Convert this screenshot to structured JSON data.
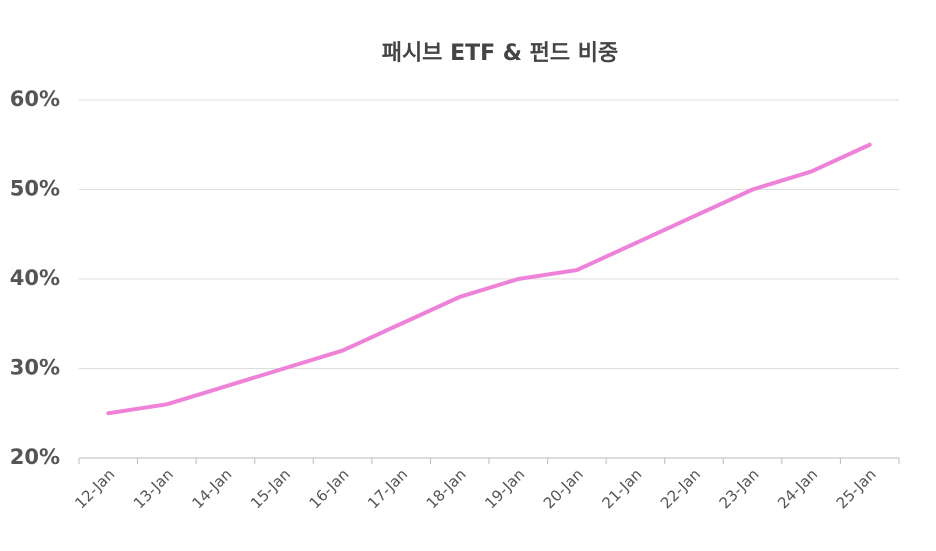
{
  "chart_data": {
    "type": "line",
    "title": "패시브 ETF & 펀드 비중",
    "categories": [
      "12-Jan",
      "13-Jan",
      "14-Jan",
      "15-Jan",
      "16-Jan",
      "17-Jan",
      "18-Jan",
      "19-Jan",
      "20-Jan",
      "21-Jan",
      "22-Jan",
      "23-Jan",
      "24-Jan",
      "25-Jan"
    ],
    "values": [
      25,
      26,
      28,
      30,
      32,
      35,
      38,
      40,
      41,
      44,
      47,
      50,
      52,
      55
    ],
    "color": "#ee82d8",
    "ylim": [
      20,
      60
    ],
    "yticks": [
      {
        "value": 20,
        "label": "20%"
      },
      {
        "value": 30,
        "label": "30%"
      },
      {
        "value": 40,
        "label": "40%"
      },
      {
        "value": 50,
        "label": "50%"
      },
      {
        "value": 60,
        "label": "60%"
      }
    ],
    "grid": true
  }
}
